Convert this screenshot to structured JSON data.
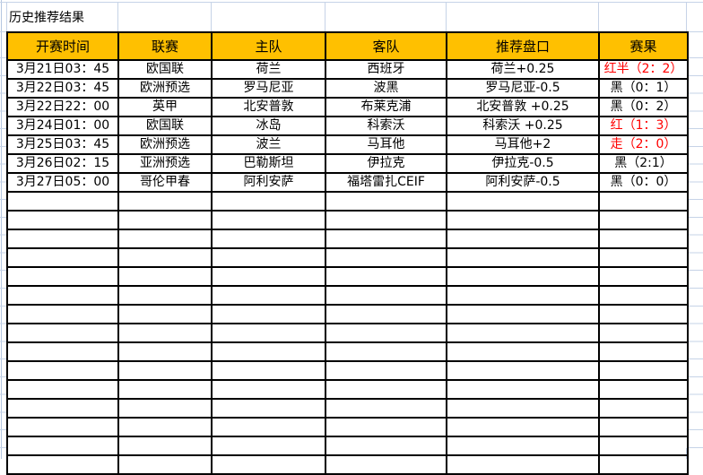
{
  "page": {
    "title": "历史推荐结果"
  },
  "table": {
    "headers": [
      "开赛时间",
      "联赛",
      "主队",
      "客队",
      "推荐盘口",
      "赛果"
    ],
    "rows": [
      {
        "time": "3月21日03：45",
        "league": "欧国联",
        "home": "荷兰",
        "away": "西班牙",
        "handicap": "荷兰+0.25",
        "result": "红半（2：2）",
        "result_color": "red"
      },
      {
        "time": "3月22日03：45",
        "league": "欧洲预选",
        "home": "罗马尼亚",
        "away": "波黑",
        "handicap": "罗马尼亚-0.5",
        "result": "黑（0：1）",
        "result_color": "black"
      },
      {
        "time": "3月22日22：00",
        "league": "英甲",
        "home": "北安普敦",
        "away": "布莱克浦",
        "handicap": "北安普敦 +0.25",
        "result": "黑（0：2）",
        "result_color": "black"
      },
      {
        "time": "3月24日01：00",
        "league": "欧国联",
        "home": "冰岛",
        "away": "科索沃",
        "handicap": "科索沃 +0.25",
        "result": "红（1：3）",
        "result_color": "red"
      },
      {
        "time": "3月25日03：45",
        "league": "欧洲预选",
        "home": "波兰",
        "away": "马耳他",
        "handicap": "马耳他+2",
        "result": "走（2：0）",
        "result_color": "red"
      },
      {
        "time": "3月26日02：15",
        "league": "亚洲预选",
        "home": "巴勒斯坦",
        "away": "伊拉克",
        "handicap": "伊拉克-0.5",
        "result": "黑（2:1）",
        "result_color": "black"
      },
      {
        "time": "3月27日05：00",
        "league": "哥伦甲春",
        "home": "阿利安萨",
        "away": "福塔雷扎CEIF",
        "handicap": "阿利安萨-0.5",
        "result": "黑（0：0）",
        "result_color": "black"
      }
    ],
    "empty_row_count": 15
  },
  "colors": {
    "header_bg": "#FFC000",
    "result_red": "#FF0000",
    "text_black": "#000000",
    "gridline": "#C6D3E7"
  }
}
